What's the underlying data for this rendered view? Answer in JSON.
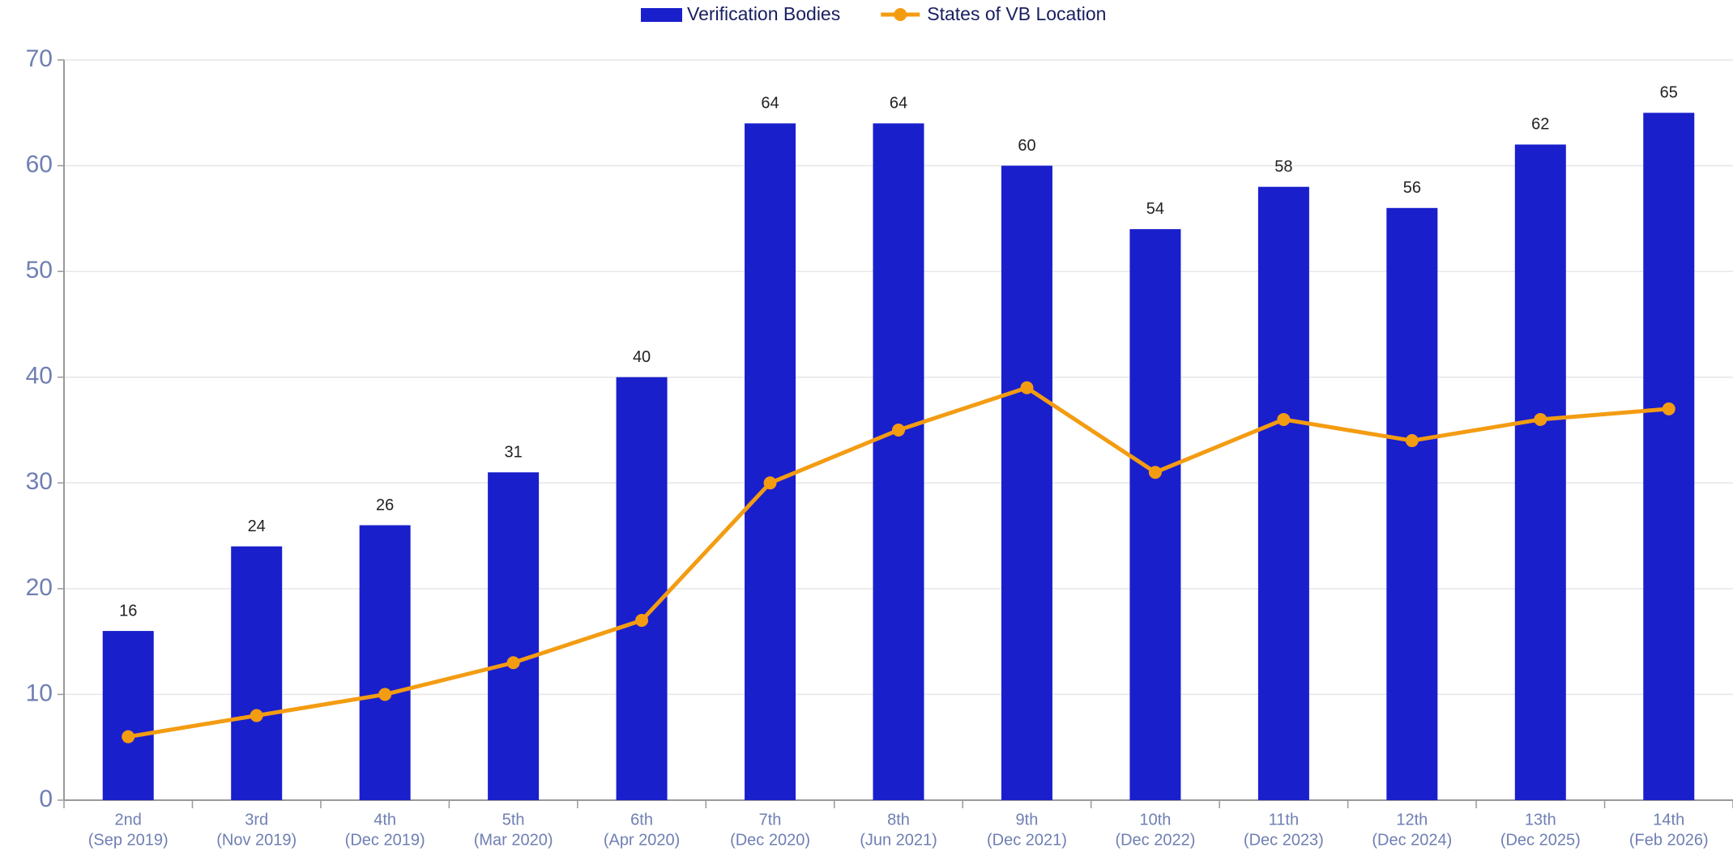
{
  "chart_data": {
    "type": "bar_line",
    "categories": [
      [
        "2nd",
        "(Sep 2019)"
      ],
      [
        "3rd",
        "(Nov 2019)"
      ],
      [
        "4th",
        "(Dec 2019)"
      ],
      [
        "5th",
        "(Mar 2020)"
      ],
      [
        "6th",
        "(Apr 2020)"
      ],
      [
        "7th",
        "(Dec 2020)"
      ],
      [
        "8th",
        "(Jun 2021)"
      ],
      [
        "9th",
        "(Dec 2021)"
      ],
      [
        "10th",
        "(Dec 2022)"
      ],
      [
        "11th",
        "(Dec 2023)"
      ],
      [
        "12th",
        "(Dec 2024)"
      ],
      [
        "13th",
        "(Dec 2025)"
      ],
      [
        "14th",
        "(Feb 2026)"
      ]
    ],
    "series": [
      {
        "name": "Verification Bodies",
        "type": "bar",
        "color": "#1a1fcc",
        "values": [
          16,
          24,
          26,
          31,
          40,
          64,
          64,
          60,
          54,
          58,
          56,
          62,
          65
        ]
      },
      {
        "name": "States of VB Location",
        "type": "line",
        "color": "#f39c12",
        "values": [
          6,
          8,
          10,
          13,
          17,
          30,
          35,
          39,
          31,
          36,
          34,
          36,
          37
        ]
      }
    ],
    "ylim": [
      0,
      70
    ],
    "yticks": [
      0,
      10,
      20,
      30,
      40,
      50,
      60,
      70
    ],
    "grid": true,
    "legend": "top"
  }
}
